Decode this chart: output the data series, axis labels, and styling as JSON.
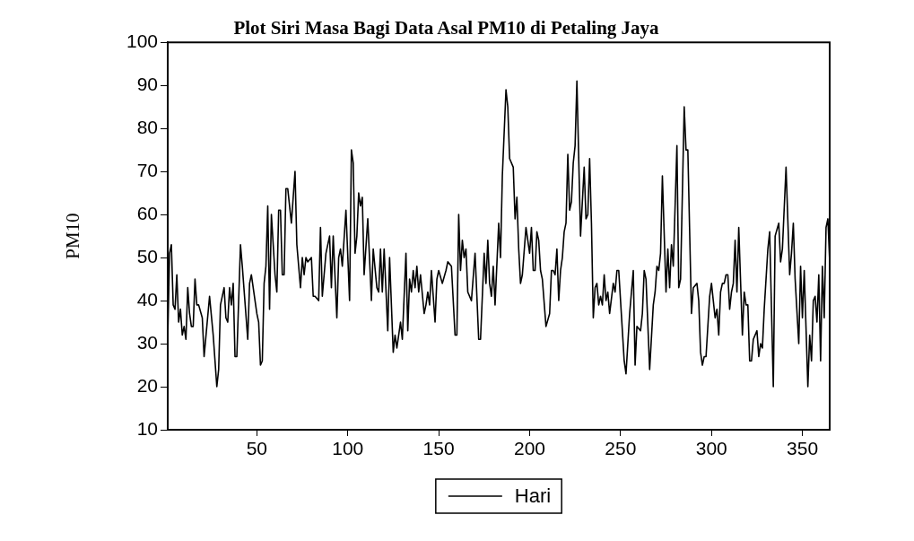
{
  "chart_data": {
    "type": "line",
    "title": "Plot Siri Masa Bagi Data Asal PM10 di Petaling Jaya",
    "ylabel": "PM10",
    "xlim": [
      1,
      365
    ],
    "xticks": [
      50,
      100,
      150,
      200,
      250,
      300,
      350
    ],
    "ylim": [
      10,
      100
    ],
    "yticks": [
      10,
      20,
      30,
      40,
      50,
      60,
      70,
      80,
      90,
      100
    ],
    "grid": false,
    "legend": "bottom",
    "marker": "none",
    "line_style": "solid",
    "series": [
      {
        "name": "Hari",
        "color": "#000000",
        "x": [
          1,
          2,
          3,
          4,
          5,
          6,
          7,
          8,
          9,
          10,
          11,
          12,
          13,
          14,
          15,
          16,
          17,
          18,
          20,
          21,
          24,
          26,
          28,
          29,
          30,
          32,
          33,
          34,
          35,
          36,
          37,
          38,
          39,
          41,
          42,
          45,
          46,
          47,
          50,
          51,
          52,
          53,
          54,
          55,
          56,
          57,
          58,
          60,
          61,
          62,
          63,
          64,
          65,
          66,
          67,
          69,
          71,
          72,
          74,
          75,
          76,
          77,
          78,
          80,
          81,
          82,
          84,
          85,
          86,
          88,
          90,
          91,
          92,
          94,
          95,
          96,
          97,
          99,
          101,
          102,
          103,
          104,
          105,
          106,
          107,
          108,
          109,
          111,
          113,
          114,
          116,
          117,
          118,
          119,
          120,
          122,
          123,
          125,
          126,
          127,
          129,
          130,
          132,
          133,
          134,
          135,
          136,
          137,
          138,
          139,
          140,
          142,
          143,
          144,
          145,
          146,
          148,
          149,
          150,
          152,
          154,
          155,
          157,
          159,
          160,
          161,
          162,
          163,
          164,
          165,
          166,
          168,
          170,
          172,
          173,
          175,
          176,
          177,
          178,
          179,
          180,
          181,
          183,
          184,
          185,
          187,
          188,
          189,
          191,
          192,
          193,
          194,
          195,
          196,
          198,
          200,
          201,
          202,
          203,
          204,
          205,
          206,
          207,
          209,
          211,
          212,
          213,
          214,
          215,
          216,
          217,
          218,
          219,
          220,
          221,
          222,
          223,
          224,
          225,
          226,
          228,
          230,
          231,
          232,
          233,
          234,
          235,
          236,
          237,
          238,
          239,
          240,
          241,
          242,
          243,
          244,
          246,
          247,
          248,
          249,
          251,
          252,
          253,
          255,
          257,
          258,
          259,
          261,
          262,
          263,
          264,
          266,
          268,
          269,
          270,
          271,
          272,
          273,
          275,
          276,
          277,
          278,
          279,
          281,
          282,
          283,
          285,
          286,
          287,
          289,
          290,
          292,
          293,
          294,
          295,
          296,
          297,
          299,
          300,
          301,
          302,
          303,
          304,
          305,
          306,
          307,
          308,
          309,
          310,
          311,
          312,
          313,
          314,
          315,
          317,
          318,
          319,
          320,
          321,
          322,
          323,
          325,
          326,
          327,
          328,
          329,
          331,
          332,
          334,
          335,
          337,
          338,
          339,
          341,
          343,
          344,
          345,
          346,
          348,
          349,
          350,
          351,
          353,
          354,
          355,
          356,
          357,
          358,
          359,
          360,
          361,
          362,
          363,
          364,
          365
        ],
        "values": [
          31,
          51,
          53,
          39,
          38,
          46,
          35,
          38,
          32,
          34,
          31,
          43,
          37,
          34,
          34,
          45,
          39,
          39,
          36,
          27,
          41,
          32,
          20,
          24,
          39,
          43,
          36,
          35,
          43,
          39,
          44,
          27,
          27,
          53,
          48,
          31,
          44,
          46,
          37,
          35,
          25,
          26,
          44,
          48,
          62,
          38,
          60,
          46,
          42,
          61,
          61,
          46,
          46,
          66,
          66,
          58,
          70,
          53,
          43,
          50,
          46,
          50,
          49,
          50,
          41,
          41,
          40,
          57,
          41,
          51,
          55,
          43,
          55,
          36,
          50,
          52,
          48,
          61,
          40,
          75,
          72,
          51,
          55,
          65,
          62,
          64,
          46,
          59,
          40,
          52,
          43,
          42,
          52,
          42,
          52,
          33,
          50,
          28,
          32,
          29,
          35,
          31,
          51,
          33,
          45,
          42,
          47,
          43,
          48,
          42,
          46,
          37,
          39,
          42,
          39,
          47,
          35,
          45,
          47,
          44,
          47,
          49,
          48,
          32,
          32,
          60,
          47,
          54,
          50,
          52,
          42,
          40,
          51,
          31,
          31,
          51,
          44,
          54,
          44,
          41,
          48,
          39,
          58,
          50,
          69,
          89,
          85,
          73,
          71,
          59,
          64,
          52,
          44,
          46,
          57,
          51,
          57,
          47,
          47,
          56,
          54,
          47,
          45,
          34,
          37,
          47,
          47,
          46,
          52,
          40,
          47,
          50,
          56,
          58,
          74,
          61,
          63,
          72,
          76,
          91,
          55,
          71,
          59,
          60,
          73,
          58,
          36,
          43,
          44,
          39,
          41,
          39,
          46,
          40,
          42,
          37,
          44,
          42,
          47,
          47,
          33,
          26,
          23,
          37,
          47,
          25,
          34,
          33,
          37,
          47,
          45,
          24,
          39,
          42,
          48,
          47,
          51,
          69,
          42,
          52,
          43,
          53,
          48,
          76,
          43,
          45,
          85,
          75,
          75,
          37,
          43,
          44,
          40,
          28,
          25,
          27,
          27,
          41,
          44,
          40,
          36,
          38,
          32,
          42,
          44,
          44,
          46,
          46,
          38,
          42,
          44,
          54,
          42,
          57,
          32,
          42,
          39,
          39,
          26,
          26,
          31,
          33,
          27,
          30,
          29,
          38,
          52,
          56,
          20,
          55,
          58,
          49,
          52,
          71,
          46,
          51,
          58,
          45,
          30,
          48,
          36,
          47,
          20,
          32,
          26,
          40,
          41,
          35,
          46,
          26,
          48,
          36,
          57,
          59,
          49
        ]
      }
    ]
  }
}
